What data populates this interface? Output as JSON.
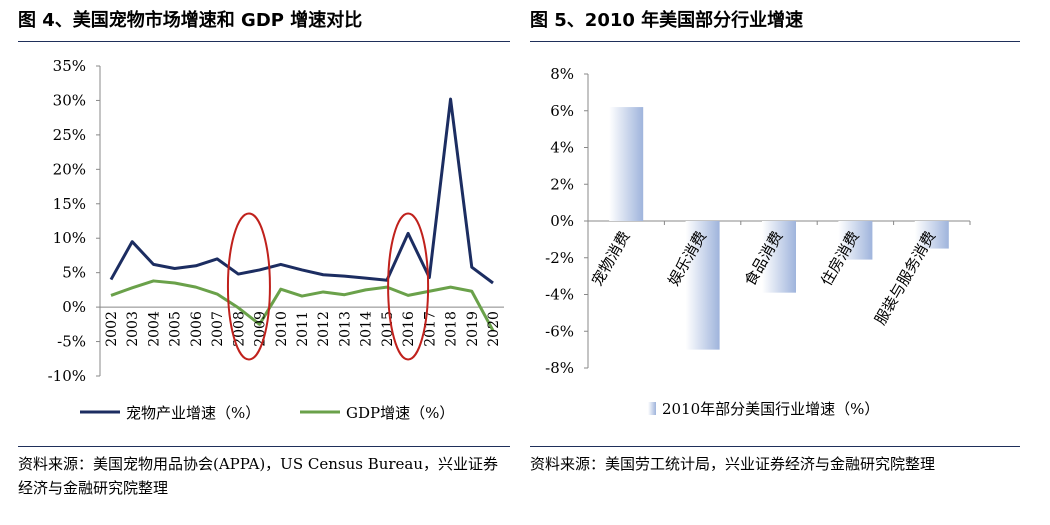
{
  "panels": {
    "left_title": "图 4、美国宠物市场增速和 GDP 增速对比",
    "right_title": "图 5、2010 年美国部分行业增速",
    "left_source": "资料来源：美国宠物用品协会(APPA)，US Census Bureau，兴业证券经济与金融研究院整理",
    "right_source": "资料来源：美国劳工统计局，兴业证券经济与金融研究院整理"
  },
  "colors": {
    "pet_line": "#1c2d61",
    "gdp_line": "#6aa14a",
    "highlight": "#c0211c",
    "bar": "#9fb4dc",
    "rule": "#1f2f5a"
  },
  "chart_data": [
    {
      "type": "line",
      "x": [
        "2002",
        "2003",
        "2004",
        "2005",
        "2006",
        "2007",
        "2008",
        "2009",
        "2010",
        "2011",
        "2012",
        "2013",
        "2014",
        "2015",
        "2016",
        "2017",
        "2018",
        "2019",
        "2020"
      ],
      "series": [
        {
          "name": "宠物产业增速（%）",
          "values": [
            4.0,
            9.5,
            6.2,
            5.6,
            6.0,
            7.0,
            4.8,
            5.4,
            6.2,
            5.4,
            4.7,
            4.5,
            4.2,
            3.9,
            10.7,
            4.3,
            30.2,
            5.8,
            3.5
          ]
        },
        {
          "name": "GDP增速（%）",
          "values": [
            1.7,
            2.8,
            3.8,
            3.5,
            2.9,
            1.9,
            -0.1,
            -2.5,
            2.6,
            1.6,
            2.2,
            1.8,
            2.5,
            2.9,
            1.7,
            2.3,
            2.9,
            2.3,
            -3.4
          ]
        }
      ],
      "y_ticks": [
        "35%",
        "30%",
        "25%",
        "20%",
        "15%",
        "10%",
        "5%",
        "0%",
        "-5%",
        "-10%"
      ],
      "ylim": [
        -10,
        35
      ],
      "highlighted_years": [
        "2008-2009",
        "2016"
      ],
      "legend_position": "bottom"
    },
    {
      "type": "bar",
      "categories": [
        "宠物消费",
        "娱乐消费",
        "食品消费",
        "住房消费",
        "服装与服务消费"
      ],
      "values": [
        6.2,
        -7.0,
        -3.9,
        -2.1,
        -1.5
      ],
      "y_ticks": [
        "8%",
        "6%",
        "4%",
        "2%",
        "0%",
        "-2%",
        "-4%",
        "-6%",
        "-8%"
      ],
      "ylim": [
        -8,
        8
      ],
      "series": [
        {
          "name": "2010年部分美国行业增速（%）"
        }
      ],
      "legend_position": "bottom"
    }
  ]
}
